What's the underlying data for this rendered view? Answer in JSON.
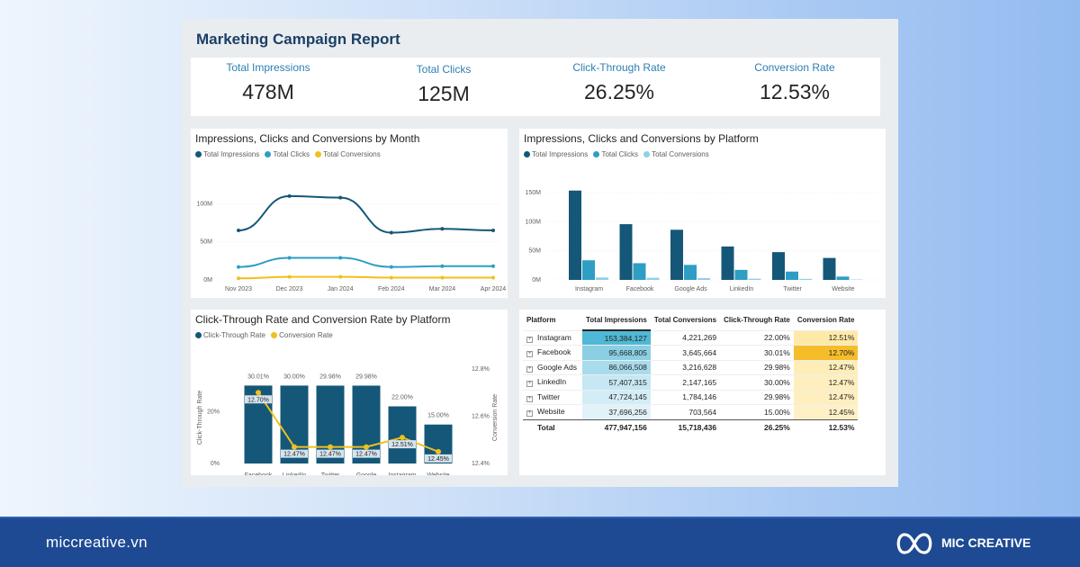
{
  "report": {
    "title": "Marketing Campaign Report"
  },
  "kpis": [
    {
      "label": "Total Impressions",
      "value": "478M"
    },
    {
      "label": "Total Clicks",
      "value": "125M"
    },
    {
      "label": "Click-Through Rate",
      "value": "26.25%"
    },
    {
      "label": "Conversion Rate",
      "value": "12.53%"
    }
  ],
  "colors": {
    "dark": "#155778",
    "mid": "#2e9ec4",
    "light": "#8fd0e6",
    "gold": "#f0c01c"
  },
  "chart_data": [
    {
      "type": "line",
      "title": "Impressions, Clicks and Conversions by Month",
      "categories": [
        "Nov 2023",
        "Dec 2023",
        "Jan 2024",
        "Feb 2024",
        "Mar 2024",
        "Apr 2024"
      ],
      "series": [
        {
          "name": "Total Impressions",
          "values": [
            65,
            110,
            108,
            62,
            67,
            65
          ]
        },
        {
          "name": "Total Clicks",
          "values": [
            17,
            29,
            29,
            17,
            18,
            18
          ]
        },
        {
          "name": "Total Conversions",
          "values": [
            2,
            4,
            4,
            3,
            3,
            3
          ]
        }
      ],
      "yticks": [
        "0M",
        "50M",
        "100M"
      ],
      "ylim": [
        0,
        130
      ]
    },
    {
      "type": "bar",
      "title": "Impressions, Clicks and Conversions by Platform",
      "categories": [
        "Instagram",
        "Facebook",
        "Google Ads",
        "LinkedIn",
        "Twitter",
        "Website"
      ],
      "series": [
        {
          "name": "Total Impressions",
          "values": [
            153.4,
            95.7,
            86.1,
            57.4,
            47.7,
            37.7
          ]
        },
        {
          "name": "Total Clicks",
          "values": [
            33.7,
            28.7,
            25.8,
            17.2,
            14.3,
            5.7
          ]
        },
        {
          "name": "Total Conversions",
          "values": [
            4.2,
            3.6,
            3.2,
            2.1,
            1.8,
            0.7
          ]
        }
      ],
      "yticks": [
        "0M",
        "50M",
        "100M",
        "150M"
      ],
      "ylim": [
        0,
        170
      ]
    },
    {
      "type": "bar",
      "title": "Click-Through Rate and Conversion Rate by Platform",
      "categories": [
        "Facebook",
        "LinkedIn",
        "Twitter",
        "Google Ads",
        "Instagram",
        "Website"
      ],
      "series": [
        {
          "name": "Click-Through Rate",
          "values": [
            30.01,
            30.0,
            29.98,
            29.98,
            22.0,
            15.0
          ],
          "labels": [
            "30.01%",
            "30.00%",
            "29.98%",
            "29.98%",
            "22.00%",
            "15.00%"
          ]
        },
        {
          "name": "Conversion Rate",
          "values": [
            12.7,
            12.47,
            12.47,
            12.47,
            12.51,
            12.45
          ],
          "labels": [
            "12.70%",
            "12.47%",
            "12.47%",
            "12.47%",
            "12.51%",
            "12.45%"
          ]
        }
      ],
      "yaxis_left": {
        "label": "Click-Through Rate",
        "ticks": [
          "0%",
          "20%"
        ]
      },
      "yaxis_right": {
        "label": "Conversion Rate",
        "ticks": [
          "12.4%",
          "12.6%",
          "12.8%"
        ]
      }
    }
  ],
  "table": {
    "headers": [
      "Platform",
      "Total Impressions",
      "Total Conversions",
      "Click-Through Rate",
      "Conversion Rate"
    ],
    "rows": [
      {
        "platform": "Instagram",
        "impressions": "153,384,127",
        "conversions": "4,221,269",
        "ctr": "22.00%",
        "cr": "12.51%"
      },
      {
        "platform": "Facebook",
        "impressions": "95,668,805",
        "conversions": "3,645,664",
        "ctr": "30.01%",
        "cr": "12.70%"
      },
      {
        "platform": "Google Ads",
        "impressions": "86,066,508",
        "conversions": "3,216,628",
        "ctr": "29.98%",
        "cr": "12.47%"
      },
      {
        "platform": "LinkedIn",
        "impressions": "57,407,315",
        "conversions": "2,147,165",
        "ctr": "30.00%",
        "cr": "12.47%"
      },
      {
        "platform": "Twitter",
        "impressions": "47,724,145",
        "conversions": "1,784,146",
        "ctr": "29.98%",
        "cr": "12.47%"
      },
      {
        "platform": "Website",
        "impressions": "37,696,256",
        "conversions": "703,564",
        "ctr": "15.00%",
        "cr": "12.45%"
      }
    ],
    "total": {
      "platform": "Total",
      "impressions": "477,947,156",
      "conversions": "15,718,436",
      "ctr": "26.25%",
      "cr": "12.53%"
    }
  },
  "footer": {
    "site": "miccreative.vn",
    "brand": "MIC CREATIVE"
  }
}
